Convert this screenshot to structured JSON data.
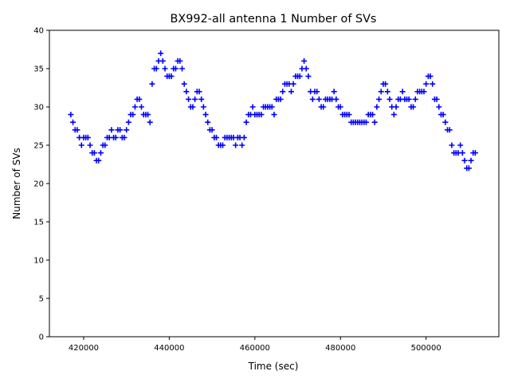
{
  "chart_data": {
    "type": "scatter",
    "title": "BX992-all antenna 1 Number of SVs",
    "xlabel": "Time (sec)",
    "ylabel": "Number of SVs",
    "xlim": [
      412000,
      517000
    ],
    "ylim": [
      0,
      40
    ],
    "xticks": [
      420000,
      440000,
      460000,
      480000,
      500000
    ],
    "xtick_labels": [
      "420000",
      "440000",
      "460000",
      "480000",
      "500000"
    ],
    "yticks": [
      0,
      5,
      10,
      15,
      20,
      25,
      30,
      35,
      40
    ],
    "ytick_labels": [
      "0",
      "5",
      "10",
      "15",
      "20",
      "25",
      "30",
      "35",
      "40"
    ],
    "grid": false,
    "marker": "+",
    "color": "#0000ff",
    "series": [
      {
        "points": [
          [
            417000,
            29
          ],
          [
            417500,
            28
          ],
          [
            418000,
            27
          ],
          [
            418500,
            27
          ],
          [
            419000,
            26
          ],
          [
            419500,
            25
          ],
          [
            420000,
            26
          ],
          [
            420500,
            26
          ],
          [
            421000,
            26
          ],
          [
            421500,
            25
          ],
          [
            422000,
            24
          ],
          [
            422500,
            24
          ],
          [
            423000,
            23
          ],
          [
            423500,
            23
          ],
          [
            424000,
            24
          ],
          [
            424500,
            25
          ],
          [
            425000,
            25
          ],
          [
            425500,
            26
          ],
          [
            426000,
            26
          ],
          [
            426500,
            27
          ],
          [
            427000,
            26
          ],
          [
            427500,
            26
          ],
          [
            428000,
            27
          ],
          [
            428500,
            27
          ],
          [
            429000,
            26
          ],
          [
            429500,
            26
          ],
          [
            430000,
            27
          ],
          [
            430500,
            28
          ],
          [
            431000,
            29
          ],
          [
            431500,
            29
          ],
          [
            432000,
            30
          ],
          [
            432500,
            31
          ],
          [
            433000,
            31
          ],
          [
            433500,
            30
          ],
          [
            434000,
            29
          ],
          [
            434500,
            29
          ],
          [
            435000,
            29
          ],
          [
            435500,
            28
          ],
          [
            436000,
            33
          ],
          [
            436500,
            35
          ],
          [
            437000,
            35
          ],
          [
            437500,
            36
          ],
          [
            438000,
            37
          ],
          [
            438500,
            36
          ],
          [
            439000,
            35
          ],
          [
            439500,
            34
          ],
          [
            440000,
            34
          ],
          [
            440500,
            34
          ],
          [
            441000,
            35
          ],
          [
            441500,
            35
          ],
          [
            442000,
            36
          ],
          [
            442500,
            36
          ],
          [
            443000,
            35
          ],
          [
            443500,
            33
          ],
          [
            444000,
            32
          ],
          [
            444500,
            31
          ],
          [
            445000,
            30
          ],
          [
            445500,
            30
          ],
          [
            446000,
            31
          ],
          [
            446500,
            32
          ],
          [
            447000,
            32
          ],
          [
            447500,
            31
          ],
          [
            448000,
            30
          ],
          [
            448500,
            29
          ],
          [
            449000,
            28
          ],
          [
            449500,
            27
          ],
          [
            450000,
            27
          ],
          [
            450500,
            26
          ],
          [
            451000,
            26
          ],
          [
            451500,
            25
          ],
          [
            452000,
            25
          ],
          [
            452500,
            25
          ],
          [
            453000,
            26
          ],
          [
            453500,
            26
          ],
          [
            454000,
            26
          ],
          [
            454500,
            26
          ],
          [
            455000,
            26
          ],
          [
            455500,
            25
          ],
          [
            456000,
            26
          ],
          [
            456500,
            26
          ],
          [
            457000,
            25
          ],
          [
            457500,
            26
          ],
          [
            458000,
            28
          ],
          [
            458500,
            29
          ],
          [
            459000,
            29
          ],
          [
            459500,
            30
          ],
          [
            460000,
            29
          ],
          [
            460500,
            29
          ],
          [
            461000,
            29
          ],
          [
            461500,
            29
          ],
          [
            462000,
            30
          ],
          [
            462500,
            30
          ],
          [
            463000,
            30
          ],
          [
            463500,
            30
          ],
          [
            464000,
            30
          ],
          [
            464500,
            29
          ],
          [
            465000,
            31
          ],
          [
            465500,
            31
          ],
          [
            466000,
            31
          ],
          [
            466500,
            32
          ],
          [
            467000,
            33
          ],
          [
            467500,
            33
          ],
          [
            468000,
            33
          ],
          [
            468500,
            32
          ],
          [
            469000,
            33
          ],
          [
            469500,
            34
          ],
          [
            470000,
            34
          ],
          [
            470500,
            34
          ],
          [
            471000,
            35
          ],
          [
            471500,
            36
          ],
          [
            472000,
            35
          ],
          [
            472500,
            34
          ],
          [
            473000,
            32
          ],
          [
            473500,
            31
          ],
          [
            474000,
            32
          ],
          [
            474500,
            32
          ],
          [
            475000,
            31
          ],
          [
            475500,
            30
          ],
          [
            476000,
            30
          ],
          [
            476500,
            31
          ],
          [
            477000,
            31
          ],
          [
            477500,
            31
          ],
          [
            478000,
            31
          ],
          [
            478500,
            32
          ],
          [
            479000,
            31
          ],
          [
            479500,
            30
          ],
          [
            480000,
            30
          ],
          [
            480500,
            29
          ],
          [
            481000,
            29
          ],
          [
            481500,
            29
          ],
          [
            482000,
            29
          ],
          [
            482500,
            28
          ],
          [
            483000,
            28
          ],
          [
            483500,
            28
          ],
          [
            484000,
            28
          ],
          [
            484500,
            28
          ],
          [
            485000,
            28
          ],
          [
            485500,
            28
          ],
          [
            486000,
            28
          ],
          [
            486500,
            29
          ],
          [
            487000,
            29
          ],
          [
            487500,
            29
          ],
          [
            488000,
            28
          ],
          [
            488500,
            30
          ],
          [
            489000,
            31
          ],
          [
            489500,
            32
          ],
          [
            490000,
            33
          ],
          [
            490500,
            33
          ],
          [
            491000,
            32
          ],
          [
            491500,
            31
          ],
          [
            492000,
            30
          ],
          [
            492500,
            29
          ],
          [
            493000,
            30
          ],
          [
            493500,
            31
          ],
          [
            494000,
            31
          ],
          [
            494500,
            32
          ],
          [
            495000,
            31
          ],
          [
            495500,
            31
          ],
          [
            496000,
            31
          ],
          [
            496500,
            30
          ],
          [
            497000,
            30
          ],
          [
            497500,
            31
          ],
          [
            498000,
            32
          ],
          [
            498500,
            32
          ],
          [
            499000,
            32
          ],
          [
            499500,
            32
          ],
          [
            500000,
            33
          ],
          [
            500500,
            34
          ],
          [
            501000,
            34
          ],
          [
            501500,
            33
          ],
          [
            502000,
            31
          ],
          [
            502500,
            31
          ],
          [
            503000,
            30
          ],
          [
            503500,
            29
          ],
          [
            504000,
            29
          ],
          [
            504500,
            28
          ],
          [
            505000,
            27
          ],
          [
            505500,
            27
          ],
          [
            506000,
            25
          ],
          [
            506500,
            24
          ],
          [
            507000,
            24
          ],
          [
            507500,
            24
          ],
          [
            508000,
            25
          ],
          [
            508500,
            24
          ],
          [
            509000,
            23
          ],
          [
            509500,
            22
          ],
          [
            510000,
            22
          ],
          [
            510500,
            23
          ],
          [
            511000,
            24
          ],
          [
            511500,
            24
          ]
        ]
      }
    ]
  }
}
